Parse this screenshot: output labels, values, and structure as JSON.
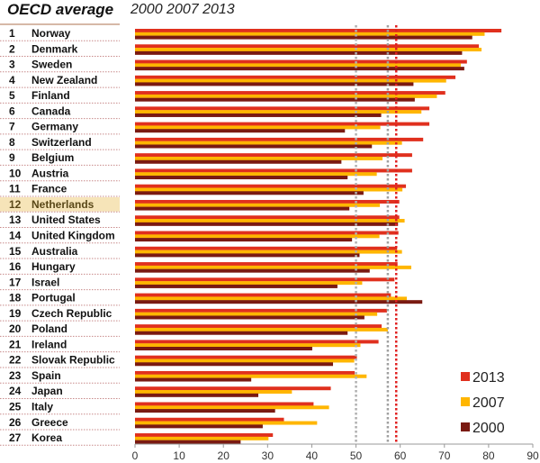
{
  "chart_data": {
    "type": "bar",
    "orientation": "horizontal",
    "title": "OECD average",
    "subtitle": "2000 2007 2013",
    "categories": [
      "Norway",
      "Denmark",
      "Sweden",
      "New Zealand",
      "Finland",
      "Canada",
      "Germany",
      "Switzerland",
      "Belgium",
      "Austria",
      "France",
      "Netherlands",
      "United States",
      "United Kingdom",
      "Australia",
      "Hungary",
      "Israel",
      "Portugal",
      "Czech Republic",
      "Poland",
      "Ireland",
      "Slovak Republic",
      "Spain",
      "Japan",
      "Italy",
      "Greece",
      "Korea"
    ],
    "ranks": [
      1,
      2,
      3,
      4,
      5,
      6,
      7,
      8,
      9,
      10,
      11,
      12,
      13,
      14,
      15,
      16,
      17,
      18,
      19,
      20,
      21,
      22,
      23,
      24,
      25,
      26,
      27
    ],
    "highlighted": "Netherlands",
    "series": [
      {
        "name": "2013",
        "color": "#e0301e",
        "values": [
          82.9,
          77.8,
          75.1,
          72.5,
          70.2,
          66.6,
          66.6,
          65.2,
          62.7,
          62.7,
          61.3,
          59.8,
          59.8,
          59.6,
          59.3,
          59.4,
          58.7,
          57.9,
          57.0,
          55.8,
          55.1,
          50.2,
          49.7,
          44.3,
          40.4,
          33.7,
          31.2
        ]
      },
      {
        "name": "2007",
        "color": "#ffb600",
        "values": [
          79.1,
          78.4,
          73.7,
          70.4,
          68.3,
          64.8,
          55.5,
          60.4,
          56.0,
          54.7,
          60.5,
          55.4,
          61.0,
          55.3,
          60.4,
          62.5,
          51.4,
          61.5,
          54.8,
          57.2,
          51.0,
          49.6,
          52.4,
          35.5,
          43.9,
          41.2,
          30.2
        ]
      },
      {
        "name": "2000",
        "color": "#7a1a12",
        "values": [
          76.3,
          74.0,
          74.5,
          63.0,
          63.3,
          55.7,
          47.5,
          53.6,
          46.7,
          48.1,
          51.7,
          48.5,
          59.5,
          49.1,
          50.8,
          53.1,
          45.8,
          65.0,
          51.9,
          48.1,
          40.1,
          44.8,
          26.3,
          27.9,
          31.7,
          28.9,
          23.9
        ]
      }
    ],
    "reference_lines": [
      {
        "year": "2000",
        "value": 50.0,
        "color": "#b0b0b0"
      },
      {
        "year": "2007",
        "value": 57.2,
        "color": "#a0a0a0"
      },
      {
        "year": "2013",
        "value": 59.1,
        "color": "#e02020"
      }
    ],
    "xlim": [
      0,
      90
    ],
    "xticks": [
      0,
      10,
      20,
      30,
      40,
      50,
      60,
      70,
      80,
      90
    ],
    "legend_position": "bottom-right",
    "legend_order": [
      "2013",
      "2007",
      "2000"
    ],
    "grid": false
  }
}
